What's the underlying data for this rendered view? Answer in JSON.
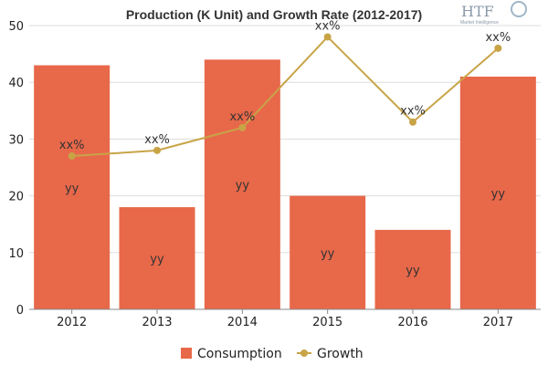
{
  "chart_data": {
    "type": "bar",
    "title": "Production (K Unit) and Growth Rate (2012-2017)",
    "categories": [
      "2012",
      "2013",
      "2014",
      "2015",
      "2016",
      "2017"
    ],
    "series": [
      {
        "name": "Consumption",
        "type": "bar",
        "color": "#e8684a",
        "values": [
          43,
          18,
          44,
          20,
          14,
          41
        ],
        "data_labels": [
          "yy",
          "yy",
          "yy",
          "yy",
          "yy",
          "yy"
        ]
      },
      {
        "name": "Growth",
        "type": "line",
        "color": "#c8a447",
        "values": [
          27,
          28,
          32,
          48,
          33,
          46
        ],
        "data_labels": [
          "xx%",
          "xx%",
          "xx%",
          "xx%",
          "xx%",
          "xx%"
        ]
      }
    ],
    "y_ticks": [
      "0",
      "10",
      "20",
      "30",
      "40",
      "50"
    ],
    "ylim": [
      0,
      50
    ],
    "grid": true,
    "legend_position": "bottom-center"
  },
  "logo": {
    "brand": "HTF",
    "tagline": "Market Intelligence"
  }
}
